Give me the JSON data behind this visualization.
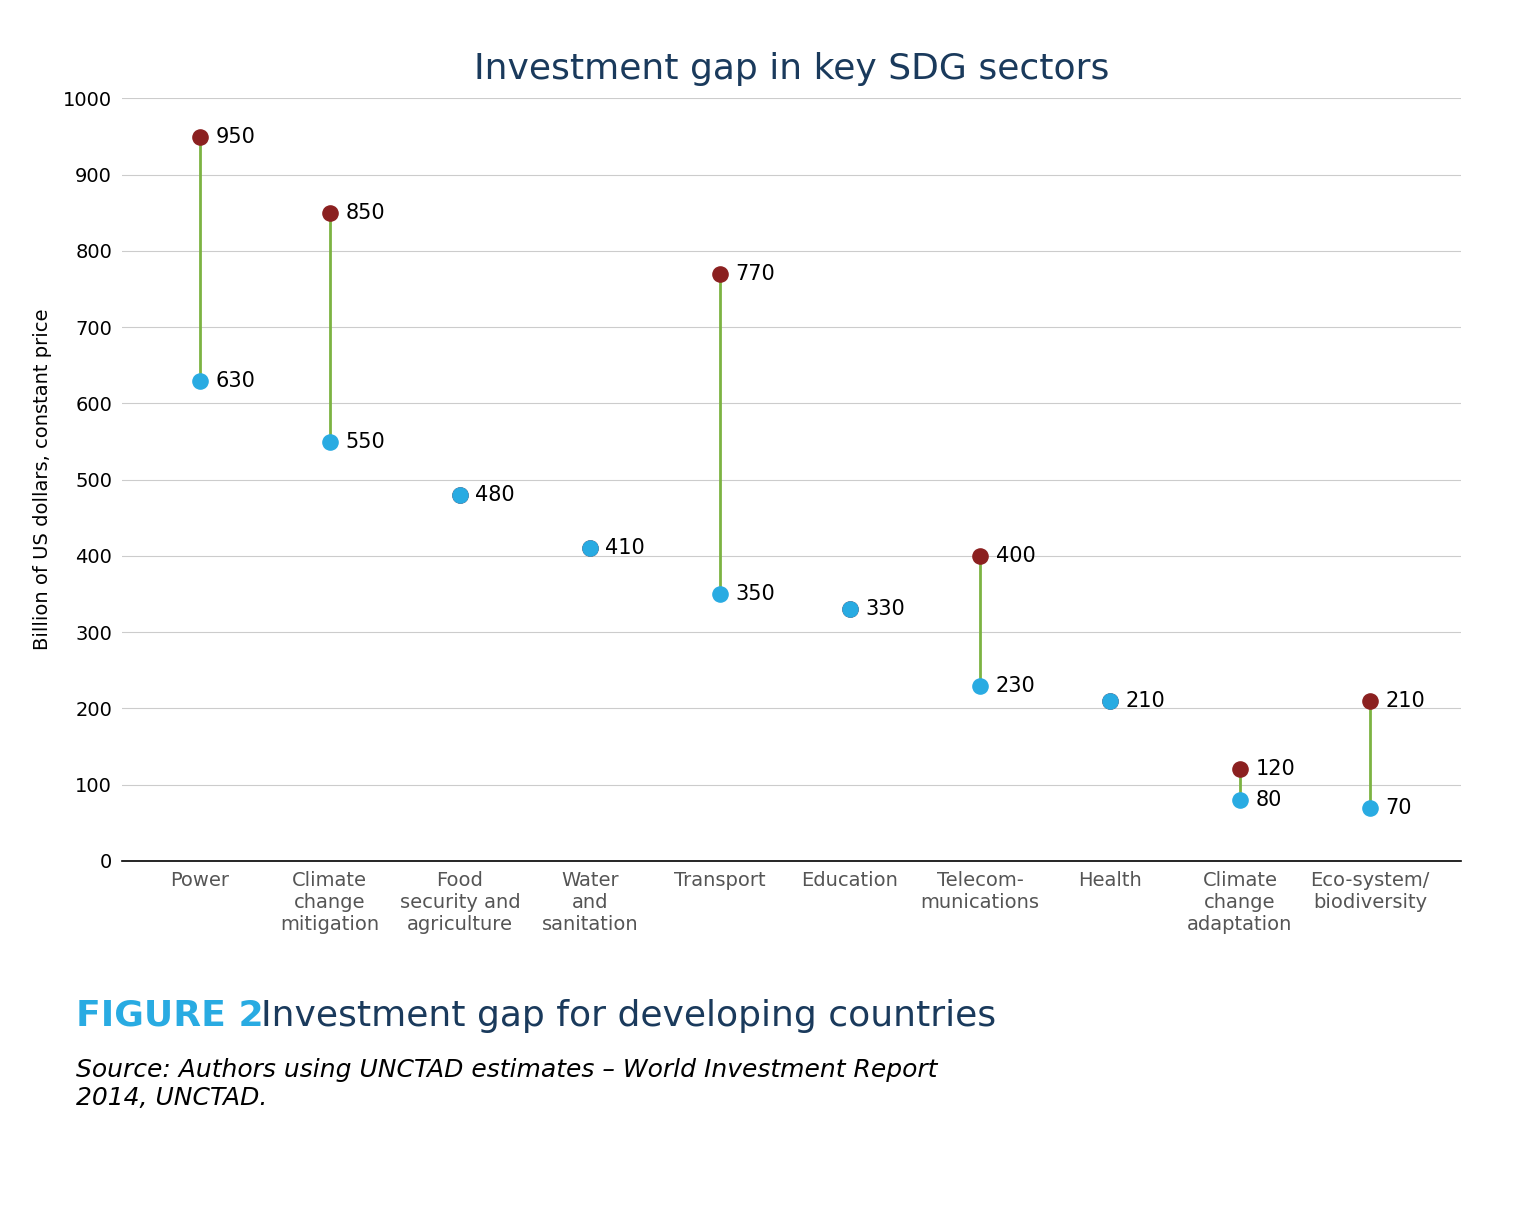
{
  "title": "Investment gap in key SDG sectors",
  "ylabel": "Billion of US dollars, constant price",
  "ylim": [
    0,
    1000
  ],
  "yticks": [
    0,
    100,
    200,
    300,
    400,
    500,
    600,
    700,
    800,
    900,
    1000
  ],
  "categories": [
    "Power",
    "Climate\nchange\nmitigation",
    "Food\nsecurity and\nagriculture",
    "Water\nand\nsanitation",
    "Transport",
    "Education",
    "Telecom-\nmunications",
    "Health",
    "Climate\nchange\nadaptation",
    "Eco-system/\nbiodiversity"
  ],
  "high_values": [
    950,
    850,
    480,
    410,
    770,
    330,
    400,
    210,
    120,
    210
  ],
  "low_values": [
    630,
    550,
    480,
    410,
    350,
    330,
    230,
    210,
    80,
    70
  ],
  "high_color": "#8B2020",
  "low_color": "#29ABE2",
  "line_color": "#7CB342",
  "title_color": "#1a3a5c",
  "title_fontsize": 26,
  "label_fontsize": 14,
  "tick_fontsize": 14,
  "value_fontsize": 15,
  "figure_caption_bold": "FIGURE 2",
  "figure_caption_bold_color": "#29ABE2",
  "figure_caption_text": "  Investment gap for developing countries",
  "figure_caption_color": "#1a3a5c",
  "figure_caption_fontsize": 26,
  "source_text": "Source: Authors using UNCTAD estimates – World Investment Report\n2014, UNCTAD.",
  "source_fontsize": 18,
  "separator_color": "#29ABE2"
}
